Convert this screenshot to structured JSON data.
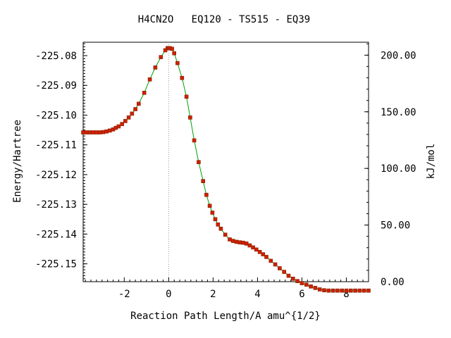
{
  "colors": {
    "curve": "#00a000",
    "marker_fill": "#d02000",
    "marker_edge": "#802000",
    "ts_line": "#9a9a9a",
    "axis": "#000000"
  },
  "chart_data": {
    "type": "line",
    "title": "H4CN2O   EQ120 - TS515 - EQ39",
    "xlabel": "Reaction Path Length/A amu^{1/2}",
    "ylabel": "Energy/Hartree",
    "y2label": "kJ/mol",
    "xlim": [
      -3.85,
      9.0
    ],
    "ylim": [
      -225.156,
      -225.0755
    ],
    "y2lim": [
      0.0,
      211.4
    ],
    "x_ticks": [
      -2,
      0,
      2,
      4,
      6,
      8
    ],
    "x_tick_labels": [
      "-2",
      "0",
      "2",
      "4",
      "6",
      "8"
    ],
    "y_ticks": [
      -225.08,
      -225.09,
      -225.1,
      -225.11,
      -225.12,
      -225.13,
      -225.14,
      -225.15
    ],
    "y_tick_labels": [
      "-225.08",
      "-225.09",
      "-225.10",
      "-225.11",
      "-225.12",
      "-225.13",
      "-225.14",
      "-225.15"
    ],
    "y2_ticks": [
      200,
      150,
      100,
      50,
      0
    ],
    "y2_tick_labels": [
      "200.00",
      "150.00",
      "100.00",
      "50.00",
      "0.00"
    ],
    "transition_state_x": 0.0,
    "grid": false,
    "legend": "none",
    "series": [
      {
        "x": [
          -3.85,
          -3.7,
          -3.55,
          -3.4,
          -3.25,
          -3.1,
          -2.95,
          -2.8,
          -2.65,
          -2.5,
          -2.38,
          -2.25,
          -2.1,
          -1.95,
          -1.8,
          -1.65,
          -1.5,
          -1.35,
          -1.1,
          -0.85,
          -0.6,
          -0.35,
          -0.15,
          -0.05,
          0.0,
          0.05,
          0.15,
          0.25,
          0.4,
          0.6,
          0.8,
          0.97,
          1.15,
          1.35,
          1.55,
          1.7,
          1.85,
          1.97,
          2.1,
          2.22,
          2.35,
          2.55,
          2.75,
          2.9,
          3.05,
          3.2,
          3.35,
          3.5,
          3.65,
          3.8,
          3.95,
          4.1,
          4.25,
          4.4,
          4.6,
          4.8,
          5.0,
          5.2,
          5.4,
          5.6,
          5.8,
          6.0,
          6.2,
          6.4,
          6.6,
          6.8,
          7.0,
          7.2,
          7.4,
          7.6,
          7.8,
          8.0,
          8.2,
          8.4,
          8.6,
          8.8,
          9.0
        ],
        "y": [
          -225.1058,
          -225.1058,
          -225.1058,
          -225.1058,
          -225.1058,
          -225.1058,
          -225.1057,
          -225.1055,
          -225.1052,
          -225.1048,
          -225.1043,
          -225.1038,
          -225.103,
          -225.102,
          -225.1008,
          -225.0995,
          -225.098,
          -225.0962,
          -225.0925,
          -225.088,
          -225.084,
          -225.0805,
          -225.0782,
          -225.0775,
          -225.0775,
          -225.0775,
          -225.0777,
          -225.0792,
          -225.0825,
          -225.0875,
          -225.0938,
          -225.1008,
          -225.1085,
          -225.1158,
          -225.1222,
          -225.1268,
          -225.1305,
          -225.1328,
          -225.135,
          -225.1368,
          -225.1382,
          -225.1402,
          -225.1418,
          -225.1423,
          -225.1426,
          -225.1428,
          -225.1429,
          -225.1432,
          -225.1438,
          -225.1445,
          -225.1452,
          -225.146,
          -225.1468,
          -225.1477,
          -225.149,
          -225.1502,
          -225.1515,
          -225.1527,
          -225.154,
          -225.155,
          -225.1558,
          -225.1565,
          -225.157,
          -225.1576,
          -225.1581,
          -225.1586,
          -225.1589,
          -225.159,
          -225.159,
          -225.159,
          -225.159,
          -225.159,
          -225.159,
          -225.159,
          -225.159,
          -225.159,
          -225.159
        ]
      }
    ]
  }
}
